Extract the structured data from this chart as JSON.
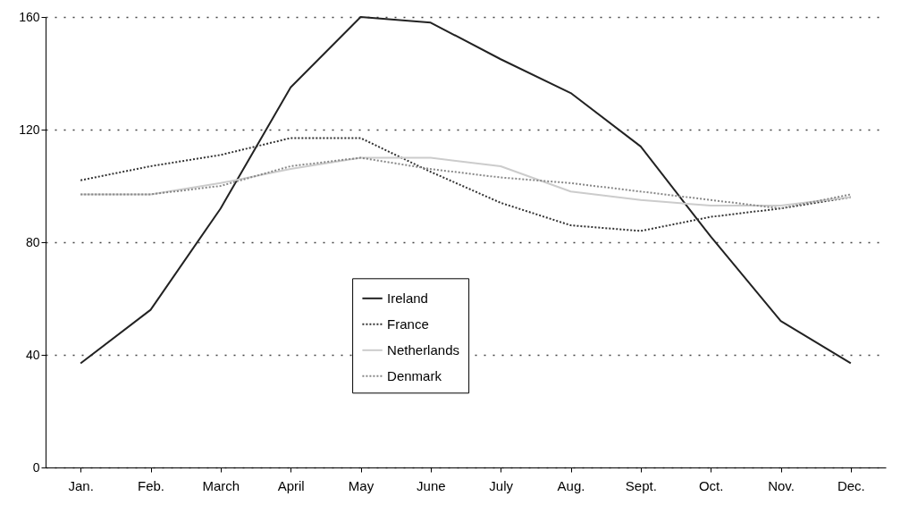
{
  "chart_data": {
    "type": "line",
    "categories": [
      "Jan.",
      "Feb.",
      "March",
      "April",
      "May",
      "June",
      "July",
      "Aug.",
      "Sept.",
      "Oct.",
      "Nov.",
      "Dec."
    ],
    "series": [
      {
        "name": "Ireland",
        "color": "#222222",
        "line_style": "solid",
        "values": [
          37,
          56,
          92,
          135,
          160,
          158,
          145,
          133,
          114,
          82,
          52,
          37
        ]
      },
      {
        "name": "France",
        "color": "#333333",
        "line_style": "dotted",
        "values": [
          102,
          107,
          111,
          117,
          117,
          105,
          94,
          86,
          84,
          89,
          92,
          96
        ]
      },
      {
        "name": "Netherlands",
        "color": "#cccccc",
        "line_style": "solid",
        "values": [
          97,
          97,
          101,
          106,
          110,
          110,
          107,
          98,
          95,
          93,
          93,
          96
        ]
      },
      {
        "name": "Denmark",
        "color": "#888888",
        "line_style": "dotted",
        "values": [
          97,
          97,
          100,
          107,
          110,
          106,
          103,
          101,
          98,
          95,
          92,
          97
        ]
      }
    ],
    "ylim": [
      0,
      160
    ],
    "yticks": [
      0,
      40,
      80,
      120,
      160
    ],
    "grid": "y",
    "legend": "bottom"
  }
}
